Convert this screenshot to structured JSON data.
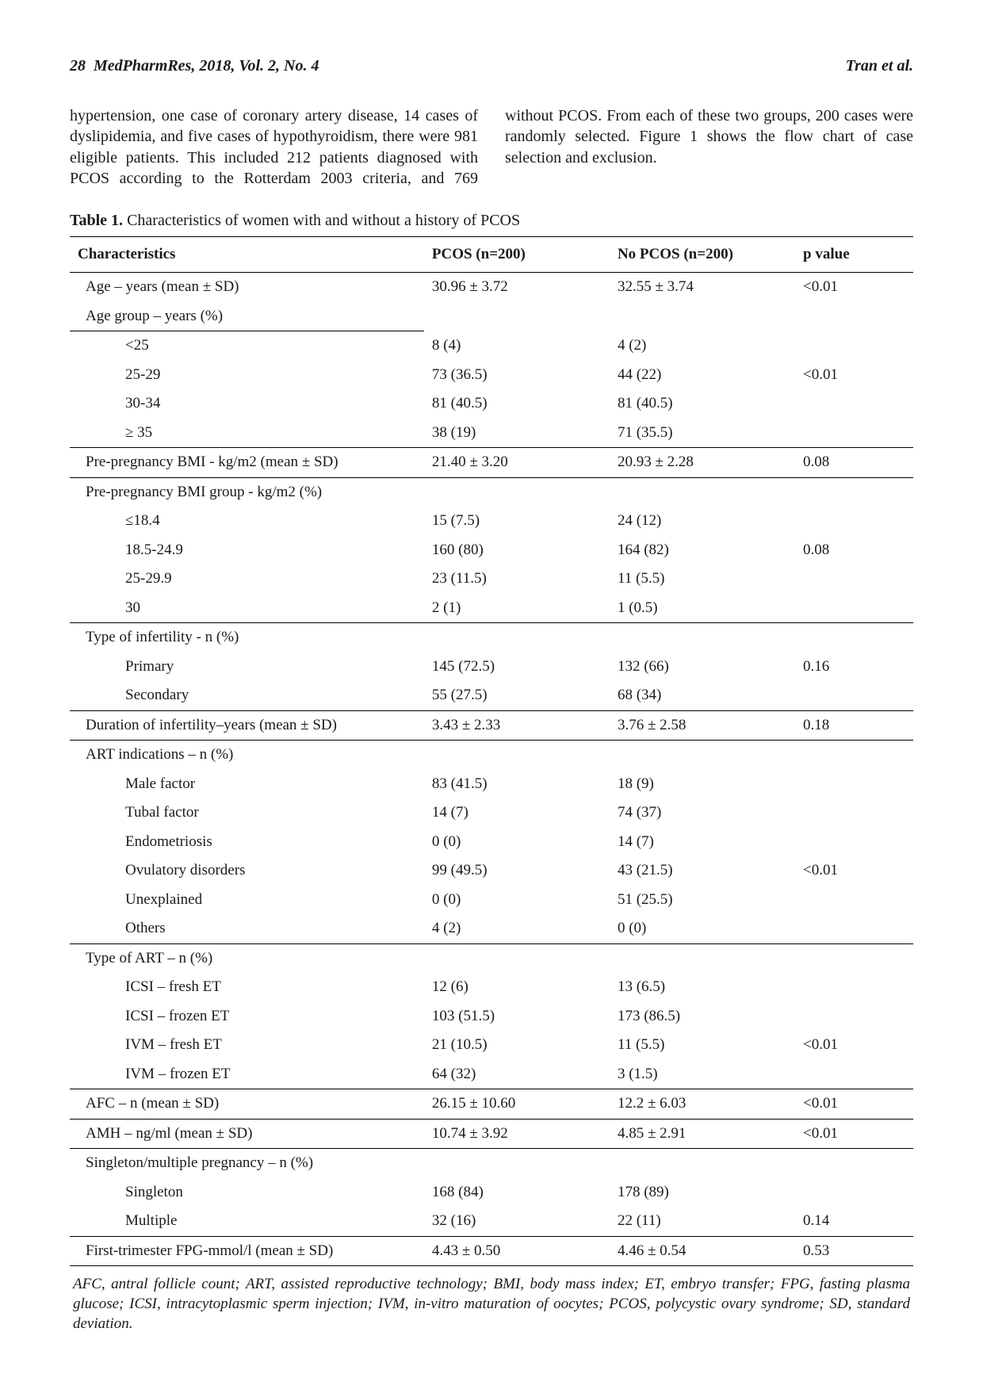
{
  "header": {
    "page_number": "28",
    "journal": "MedPharmRes, 2018, Vol. 2, No. 4",
    "authors": "Tran et al."
  },
  "body": {
    "paragraph": "hypertension, one case of coronary artery disease, 14 cases of dyslipidemia, and five cases of hypothyroidism, there were 981 eligible patients. This included 212 patients diagnosed with PCOS according to the Rotterdam 2003 criteria, and 769 without PCOS. From each of these two groups, 200 cases were randomly selected. Figure 1 shows the flow chart of case selection and exclusion."
  },
  "table": {
    "caption_label": "Table 1.",
    "caption_text": "Characteristics of women with and without a history of PCOS",
    "columns": {
      "c1": "Characteristics",
      "c2": "PCOS (n=200)",
      "c3": "No PCOS (n=200)",
      "c4": "p value"
    },
    "rows": [
      {
        "label": "Age – years (mean ± SD)",
        "indent": 0,
        "pcos": "30.96 ± 3.72",
        "nopcos": "32.55 ± 3.74",
        "p": "<0.01",
        "bt": false,
        "bb": false
      },
      {
        "label": "Age group – years (%)",
        "indent": 0,
        "pcos": "",
        "nopcos": "",
        "p": "",
        "bt": false,
        "bb": false,
        "label_uline": true
      },
      {
        "label": "<25",
        "indent": 1,
        "pcos": "8 (4)",
        "nopcos": "4 (2)",
        "p": "",
        "bt": false,
        "bb": false
      },
      {
        "label": "25-29",
        "indent": 1,
        "pcos": "73 (36.5)",
        "nopcos": "44 (22)",
        "p": "<0.01",
        "bt": false,
        "bb": false
      },
      {
        "label": "30-34",
        "indent": 1,
        "pcos": "81 (40.5)",
        "nopcos": "81 (40.5)",
        "p": "",
        "bt": false,
        "bb": false
      },
      {
        "label": "≥ 35",
        "indent": 1,
        "pcos": "38 (19)",
        "nopcos": "71 (35.5)",
        "p": "",
        "bt": false,
        "bb": true
      },
      {
        "label": "Pre-pregnancy BMI - kg/m2 (mean ± SD)",
        "indent": 0,
        "pcos": "21.40 ± 3.20",
        "nopcos": "20.93 ± 2.28",
        "p": "0.08",
        "bt": false,
        "bb": true
      },
      {
        "label": "Pre-pregnancy BMI group - kg/m2 (%)",
        "indent": 0,
        "pcos": "",
        "nopcos": "",
        "p": "",
        "bt": false,
        "bb": false
      },
      {
        "label": "≤18.4",
        "indent": 1,
        "pcos": "15 (7.5)",
        "nopcos": "24 (12)",
        "p": "",
        "bt": false,
        "bb": false
      },
      {
        "label": "18.5-24.9",
        "indent": 1,
        "pcos": "160 (80)",
        "nopcos": "164 (82)",
        "p": "0.08",
        "bt": false,
        "bb": false
      },
      {
        "label": "25-29.9",
        "indent": 1,
        "pcos": "23 (11.5)",
        "nopcos": "11 (5.5)",
        "p": "",
        "bt": false,
        "bb": false
      },
      {
        "label": "30",
        "indent": 1,
        "pcos": "2 (1)",
        "nopcos": "1 (0.5)",
        "p": "",
        "bt": false,
        "bb": true
      },
      {
        "label": "Type of infertility - n (%)",
        "indent": 0,
        "pcos": "",
        "nopcos": "",
        "p": "",
        "bt": false,
        "bb": false
      },
      {
        "label": "Primary",
        "indent": 1,
        "pcos": "145 (72.5)",
        "nopcos": "132 (66)",
        "p": "0.16",
        "bt": false,
        "bb": false
      },
      {
        "label": "Secondary",
        "indent": 1,
        "pcos": "55 (27.5)",
        "nopcos": "68 (34)",
        "p": "",
        "bt": false,
        "bb": true
      },
      {
        "label": "Duration of infertility–years (mean ± SD)",
        "indent": 0,
        "pcos": "3.43 ± 2.33",
        "nopcos": "3.76 ± 2.58",
        "p": "0.18",
        "bt": false,
        "bb": true
      },
      {
        "label": "ART indications – n (%)",
        "indent": 0,
        "pcos": "",
        "nopcos": "",
        "p": "",
        "bt": false,
        "bb": false
      },
      {
        "label": "Male factor",
        "indent": 1,
        "pcos": "83 (41.5)",
        "nopcos": "18 (9)",
        "p": "",
        "bt": false,
        "bb": false
      },
      {
        "label": "Tubal factor",
        "indent": 1,
        "pcos": "14 (7)",
        "nopcos": "74 (37)",
        "p": "",
        "bt": false,
        "bb": false
      },
      {
        "label": "Endometriosis",
        "indent": 1,
        "pcos": "0 (0)",
        "nopcos": "14 (7)",
        "p": "",
        "bt": false,
        "bb": false
      },
      {
        "label": "Ovulatory disorders",
        "indent": 1,
        "pcos": "99 (49.5)",
        "nopcos": "43 (21.5)",
        "p": "<0.01",
        "bt": false,
        "bb": false
      },
      {
        "label": "Unexplained",
        "indent": 1,
        "pcos": "0 (0)",
        "nopcos": "51 (25.5)",
        "p": "",
        "bt": false,
        "bb": false
      },
      {
        "label": "Others",
        "indent": 1,
        "pcos": "4 (2)",
        "nopcos": "0 (0)",
        "p": "",
        "bt": false,
        "bb": true
      },
      {
        "label": "Type of ART – n (%)",
        "indent": 0,
        "pcos": "",
        "nopcos": "",
        "p": "",
        "bt": false,
        "bb": false
      },
      {
        "label": "ICSI – fresh ET",
        "indent": 1,
        "pcos": "12 (6)",
        "nopcos": "13 (6.5)",
        "p": "",
        "bt": false,
        "bb": false
      },
      {
        "label": "ICSI – frozen ET",
        "indent": 1,
        "pcos": "103 (51.5)",
        "nopcos": "173 (86.5)",
        "p": "",
        "bt": false,
        "bb": false
      },
      {
        "label": "IVM – fresh ET",
        "indent": 1,
        "pcos": "21 (10.5)",
        "nopcos": "11 (5.5)",
        "p": "<0.01",
        "bt": false,
        "bb": false
      },
      {
        "label": "IVM – frozen ET",
        "indent": 1,
        "pcos": "64 (32)",
        "nopcos": "3 (1.5)",
        "p": "",
        "bt": false,
        "bb": true
      },
      {
        "label": "AFC – n (mean ± SD)",
        "indent": 0,
        "pcos": "26.15 ± 10.60",
        "nopcos": "12.2 ± 6.03",
        "p": "<0.01",
        "bt": false,
        "bb": true
      },
      {
        "label": "AMH – ng/ml (mean ± SD)",
        "indent": 0,
        "pcos": "10.74 ± 3.92",
        "nopcos": "4.85 ± 2.91",
        "p": "<0.01",
        "bt": false,
        "bb": true
      },
      {
        "label": "Singleton/multiple pregnancy – n (%)",
        "indent": 0,
        "pcos": "",
        "nopcos": "",
        "p": "",
        "bt": false,
        "bb": false
      },
      {
        "label": "Singleton",
        "indent": 1,
        "pcos": "168 (84)",
        "nopcos": "178 (89)",
        "p": "",
        "bt": false,
        "bb": false
      },
      {
        "label": "Multiple",
        "indent": 1,
        "pcos": "32 (16)",
        "nopcos": "22 (11)",
        "p": "0.14",
        "bt": false,
        "bb": true
      },
      {
        "label": "First-trimester FPG-mmol/l (mean ± SD)",
        "indent": 0,
        "pcos": "4.43 ± 0.50",
        "nopcos": "4.46 ± 0.54",
        "p": "0.53",
        "bt": false,
        "bb": true
      }
    ]
  },
  "footnote": "AFC, antral follicle count; ART, assisted reproductive technology; BMI, body mass index; ET, embryo transfer; FPG, fasting plasma glucose; ICSI, intracytoplasmic sperm injection; IVM, in-vitro maturation of oocytes; PCOS, polycystic ovary syndrome; SD, standard deviation."
}
